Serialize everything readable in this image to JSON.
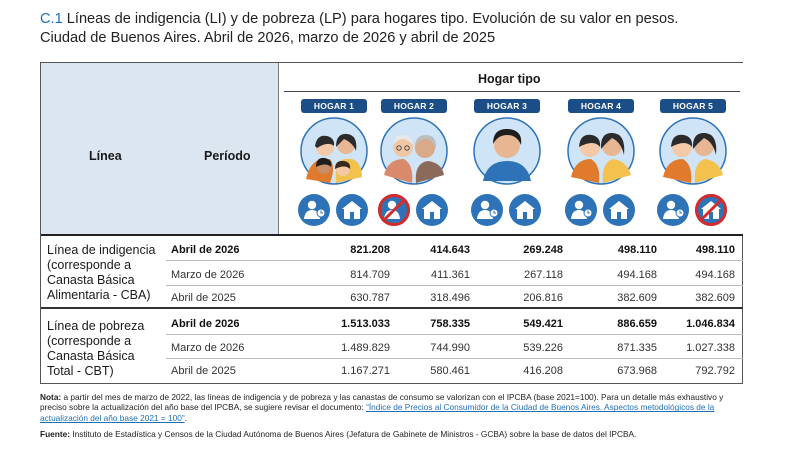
{
  "title": {
    "number": "C.1",
    "line1": " Líneas de indigencia (LI) y de pobreza (LP) para hogares tipo. Evolución de su valor en pesos.",
    "line2": "Ciudad de Buenos Aires. Abril de 2026, marzo de 2026 y abril de 2025"
  },
  "table": {
    "header": {
      "linea": "Línea",
      "periodo": "Período",
      "hogar_tipo": "Hogar tipo",
      "hogares": [
        {
          "label": "HOGAR 1",
          "icons": [
            "worker-icon",
            "house-icon"
          ]
        },
        {
          "label": "HOGAR 2",
          "icons": [
            "worker-crossed-icon",
            "house-icon"
          ]
        },
        {
          "label": "HOGAR 3",
          "icons": [
            "worker-icon",
            "house-icon"
          ]
        },
        {
          "label": "HOGAR 4",
          "icons": [
            "worker-icon",
            "house-icon"
          ]
        },
        {
          "label": "HOGAR 5",
          "icons": [
            "worker-icon",
            "house-crossed-icon"
          ]
        }
      ]
    },
    "groups": [
      {
        "name_lines": [
          "Línea de indigencia",
          "(corresponde a",
          "Canasta Básica",
          "Alimentaria - CBA)"
        ],
        "rows": [
          {
            "period": "Abril de 2026",
            "values": [
              "821.208",
              "414.643",
              "269.248",
              "498.110",
              "498.110"
            ]
          },
          {
            "period": "Marzo de 2026",
            "values": [
              "814.709",
              "411.361",
              "267.118",
              "494.168",
              "494.168"
            ]
          },
          {
            "period": "Abril de 2025",
            "values": [
              "630.787",
              "318.496",
              "206.816",
              "382.609",
              "382.609"
            ]
          }
        ]
      },
      {
        "name_lines": [
          "Línea de pobreza",
          "(corresponde a",
          "Canasta Básica",
          "Total - CBT)"
        ],
        "rows": [
          {
            "period": "Abril de 2026",
            "values": [
              "1.513.033",
              "758.335",
              "549.421",
              "886.659",
              "1.046.834"
            ]
          },
          {
            "period": "Marzo de 2026",
            "values": [
              "1.489.829",
              "744.990",
              "539.226",
              "871.335",
              "1.027.338"
            ]
          },
          {
            "period": "Abril de 2025",
            "values": [
              "1.167.271",
              "580.461",
              "416.208",
              "673.968",
              "792.792"
            ]
          }
        ]
      }
    ]
  },
  "note": {
    "label": "Nota:",
    "text": " a partir del mes de marzo de 2022, las líneas de indigencia y de pobreza y las canastas de consumo se valorizan con el IPCBA (base 2021=100). Para un detalle más exhaustivo y preciso sobre la actualización del año base del IPCBA, se sugiere revisar el documento: ",
    "link": "“Índice de Precios al Consumidor de la Ciudad de Buenos Aires. Aspectos metodológicos de la actualización del año base 2021 = 100”",
    "end": "."
  },
  "source": {
    "label": "Fuente:",
    "text": " Instituto de Estadística y Censos de la Ciudad Autónoma de Buenos Aires (Jefatura de Gabinete de Ministros - GCBA) sobre la base de datos del IPCBA."
  },
  "colors": {
    "accent": "#1f6fb5",
    "pill": "#1b4d86",
    "header_bg": "#dbe6f1",
    "icon_circle": "#2e73b8",
    "cross": "#d62b2b"
  }
}
